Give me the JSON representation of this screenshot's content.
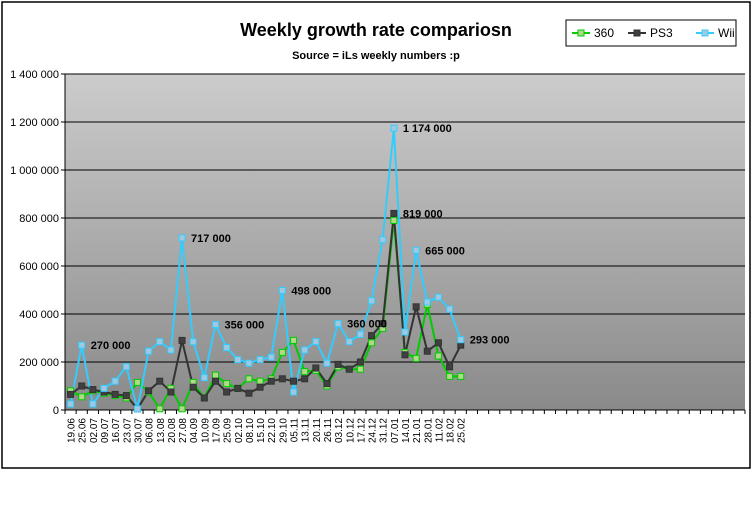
{
  "chart_data": {
    "type": "line",
    "title": "Weekly growth rate compariosn",
    "subtitle": "Source = iLs weekly numbers :p",
    "ylim": [
      0,
      1400000
    ],
    "yticks": [
      0,
      200000,
      400000,
      600000,
      800000,
      1000000,
      1200000,
      1400000
    ],
    "ytick_labels": [
      "0",
      "200 000",
      "400 000",
      "600 000",
      "800 000",
      "1 000 000",
      "1 200 000",
      "1 400 000"
    ],
    "grid": true,
    "legend_position": "top-right",
    "background_gradient": [
      "#8a8a8a",
      "#cccccc"
    ],
    "categories": [
      "19.06",
      "25.06",
      "02.07",
      "09.07",
      "16.07",
      "23.07",
      "30.07",
      "06.08",
      "13.08",
      "20.08",
      "27.08",
      "04.09",
      "10.09",
      "17.09",
      "25.09",
      "02.10",
      "08.10",
      "15.10",
      "22.10",
      "29.10",
      "05.11",
      "13.11",
      "20.11",
      "26.11",
      "03.12",
      "10.12",
      "17.12",
      "24.12",
      "31.12",
      "07.01",
      "14.01",
      "21.01",
      "28.01",
      "11.02",
      "18.02",
      "25.02"
    ],
    "series": [
      {
        "name": "360",
        "color": "#00cc00",
        "marker": "#b2d88a",
        "values": [
          80000,
          55000,
          80000,
          70000,
          60000,
          50000,
          115000,
          75000,
          5000,
          90000,
          5000,
          115000,
          50000,
          145000,
          110000,
          90000,
          130000,
          120000,
          130000,
          240000,
          290000,
          160000,
          165000,
          100000,
          180000,
          170000,
          170000,
          280000,
          340000,
          790000,
          240000,
          215000,
          440000,
          225000,
          140000,
          140000
        ]
      },
      {
        "name": "PS3",
        "color": "#333333",
        "marker": "#404040",
        "values": [
          65000,
          100000,
          85000,
          75000,
          65000,
          60000,
          5000,
          80000,
          120000,
          75000,
          290000,
          95000,
          50000,
          120000,
          75000,
          90000,
          70000,
          95000,
          120000,
          130000,
          120000,
          130000,
          175000,
          110000,
          190000,
          170000,
          200000,
          310000,
          360000,
          819000,
          230000,
          430000,
          245000,
          280000,
          180000,
          270000
        ]
      },
      {
        "name": "Wii",
        "color": "#33ccff",
        "marker": "#a0c8e0",
        "values": [
          25000,
          270000,
          25000,
          90000,
          120000,
          180000,
          5000,
          245000,
          285000,
          250000,
          717000,
          285000,
          135000,
          356000,
          260000,
          210000,
          195000,
          210000,
          220000,
          498000,
          75000,
          250000,
          285000,
          195000,
          360000,
          285000,
          315000,
          455000,
          710000,
          1174000,
          325000,
          665000,
          450000,
          470000,
          420000,
          293000
        ]
      }
    ],
    "annotations": [
      {
        "series": "Wii",
        "index": 1,
        "text": "270 000"
      },
      {
        "series": "Wii",
        "index": 10,
        "text": "717 000"
      },
      {
        "series": "Wii",
        "index": 13,
        "text": "356 000"
      },
      {
        "series": "Wii",
        "index": 19,
        "text": "498 000"
      },
      {
        "series": "Wii",
        "index": 24,
        "text": "360 000"
      },
      {
        "series": "Wii",
        "index": 29,
        "text": "1 174 000"
      },
      {
        "series": "PS3",
        "index": 29,
        "text": "819 000"
      },
      {
        "series": "Wii",
        "index": 31,
        "text": "665 000"
      },
      {
        "series": "Wii",
        "index": 35,
        "text": "293 000"
      }
    ]
  }
}
